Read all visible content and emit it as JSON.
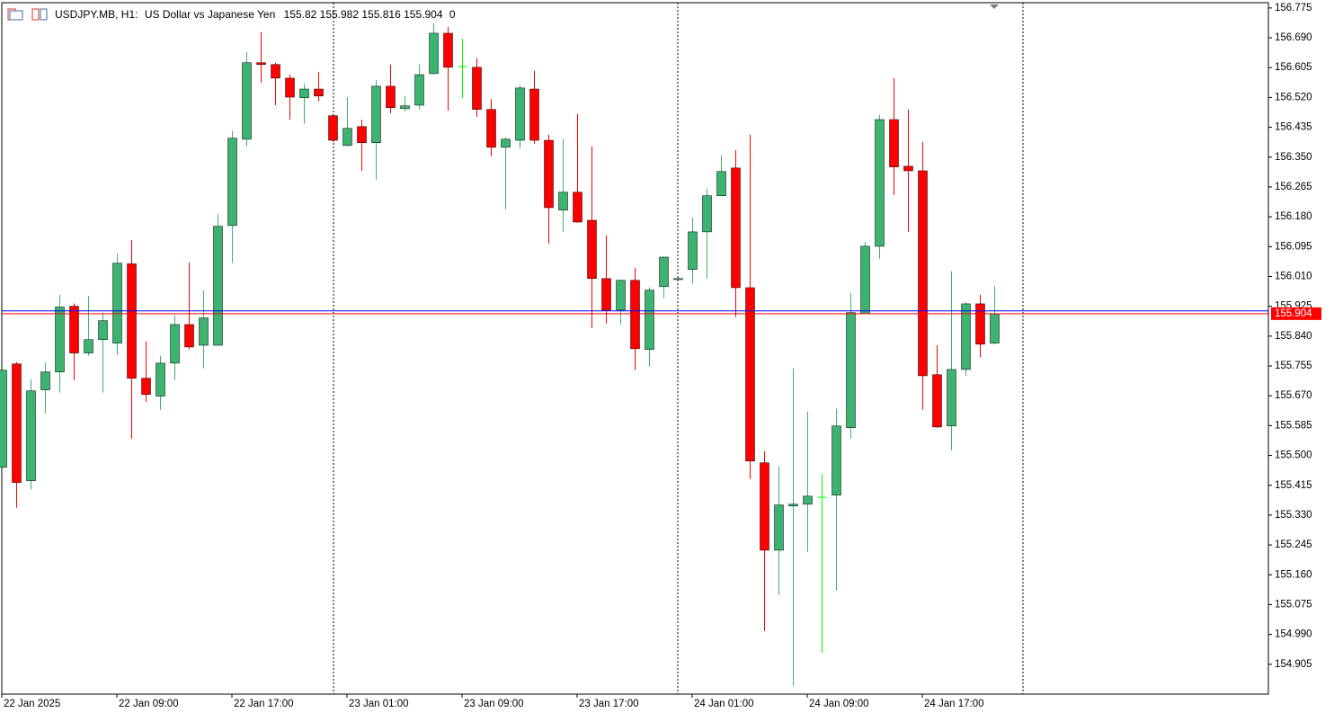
{
  "chart_data": {
    "type": "candlestick",
    "symbol": "USDJPY.MB, H1:",
    "description": "US Dollar vs Japanese Yen",
    "header_tail": "0",
    "categories": [
      "22 Jan 2025",
      null,
      null,
      null,
      null,
      null,
      null,
      null,
      "22 Jan 09:00",
      null,
      null,
      null,
      null,
      null,
      null,
      null,
      "22 Jan 17:00",
      null,
      null,
      null,
      null,
      null,
      null,
      null,
      "23 Jan 01:00",
      null,
      null,
      null,
      null,
      null,
      null,
      null,
      "23 Jan 09:00",
      null,
      null,
      null,
      null,
      null,
      null,
      null,
      "23 Jan 17:00",
      null,
      null,
      null,
      null,
      null,
      null,
      null,
      "24 Jan 01:00",
      null,
      null,
      null,
      null,
      null,
      null,
      null,
      "24 Jan 09:00",
      null,
      null,
      null,
      null,
      null,
      null,
      null,
      "24 Jan 17:00",
      null,
      null,
      null,
      null,
      null
    ],
    "open": [
      155.466,
      155.761,
      155.428,
      155.687,
      155.738,
      155.925,
      155.792,
      155.83,
      155.82,
      156.046,
      155.72,
      155.669,
      155.763,
      155.873,
      155.814,
      155.814,
      156.155,
      156.401,
      156.619,
      156.614,
      156.575,
      156.519,
      156.544,
      156.468,
      156.383,
      156.437,
      156.391,
      156.552,
      156.488,
      156.498,
      156.588,
      156.703,
      156.609,
      156.606,
      156.486,
      156.378,
      156.398,
      156.544,
      156.398,
      156.199,
      156.25,
      156.17,
      156.004,
      155.914,
      155.999,
      155.802,
      155.981,
      156.001,
      156.03,
      156.137,
      156.24,
      156.319,
      155.978,
      155.479,
      155.23,
      155.356,
      155.361,
      155.382,
      155.387,
      155.579,
      155.904,
      156.096,
      156.457,
      156.324,
      156.311,
      155.73,
      155.584,
      155.745,
      155.932,
      155.82
    ],
    "high": [
      155.761,
      155.766,
      155.717,
      155.764,
      155.958,
      155.933,
      155.955,
      155.907,
      156.076,
      156.114,
      155.825,
      155.784,
      155.899,
      156.05,
      155.971,
      156.188,
      156.424,
      156.649,
      156.706,
      156.619,
      156.585,
      156.56,
      156.593,
      156.473,
      156.521,
      156.457,
      156.57,
      156.614,
      156.524,
      156.614,
      156.731,
      156.721,
      156.688,
      156.632,
      156.516,
      156.406,
      156.555,
      156.596,
      156.414,
      156.401,
      156.473,
      156.381,
      156.127,
      156.001,
      156.035,
      155.979,
      156.067,
      156.006,
      156.178,
      156.26,
      156.355,
      156.37,
      156.414,
      155.512,
      155.469,
      155.748,
      155.625,
      155.448,
      155.633,
      155.963,
      156.109,
      156.47,
      156.575,
      156.486,
      156.393,
      155.814,
      156.025,
      155.937,
      155.958,
      155.982
    ],
    "low": [
      155.453,
      155.351,
      155.403,
      155.62,
      155.679,
      155.715,
      155.784,
      155.679,
      155.786,
      155.548,
      155.653,
      155.63,
      155.715,
      155.802,
      155.748,
      155.812,
      156.048,
      156.381,
      156.562,
      156.498,
      156.457,
      156.445,
      156.509,
      156.393,
      156.381,
      156.311,
      156.286,
      156.475,
      156.48,
      156.486,
      156.585,
      156.483,
      156.519,
      156.465,
      156.352,
      156.201,
      156.375,
      156.388,
      156.104,
      156.137,
      156.163,
      155.863,
      155.876,
      155.873,
      155.743,
      155.753,
      155.948,
      155.996,
      155.989,
      156.004,
      156.24,
      155.894,
      155.433,
      155.0,
      155.102,
      154.844,
      155.225,
      154.938,
      155.115,
      155.548,
      155.902,
      156.06,
      156.242,
      156.137,
      155.63,
      155.579,
      155.515,
      155.727,
      155.779,
      155.816
    ],
    "close": [
      155.743,
      155.423,
      155.684,
      155.738,
      155.923,
      155.792,
      155.83,
      155.884,
      156.048,
      155.72,
      155.674,
      155.763,
      155.873,
      155.809,
      155.892,
      156.153,
      156.404,
      156.619,
      156.614,
      156.575,
      156.521,
      156.544,
      156.524,
      156.398,
      156.432,
      156.391,
      156.552,
      156.491,
      156.496,
      156.585,
      156.703,
      156.606,
      156.609,
      156.486,
      156.378,
      156.401,
      156.547,
      156.398,
      156.206,
      156.25,
      156.165,
      156.004,
      155.914,
      155.999,
      155.804,
      155.971,
      156.065,
      156.004,
      156.137,
      156.24,
      156.309,
      155.978,
      155.484,
      155.23,
      155.359,
      155.361,
      155.384,
      155.382,
      155.584,
      155.907,
      156.096,
      156.457,
      156.322,
      156.311,
      155.727,
      155.581,
      155.745,
      155.932,
      155.817,
      155.904
    ],
    "up_color": "#3cb371",
    "down_color": "#ff0000",
    "doji_color": "#00ff00",
    "ask": 155.912,
    "ask_color": "#0000ff",
    "bid_color": "#ff0000",
    "ylim": [
      154.82,
      156.79
    ],
    "yticks": [
      156.775,
      {
        "value": 156.69,
        "label": "156.690"
      },
      156.605,
      {
        "value": 156.52,
        "label": "156.520"
      },
      156.435,
      {
        "value": 156.35,
        "label": "156.350"
      },
      156.265,
      {
        "value": 156.18,
        "label": "156.180"
      },
      156.095,
      {
        "value": 156.01,
        "label": "156.010"
      },
      155.925,
      {
        "value": 155.84,
        "label": "155.840"
      },
      155.755,
      {
        "value": 155.67,
        "label": "155.670"
      },
      155.585,
      {
        "value": 155.5,
        "label": "155.500"
      },
      155.415,
      {
        "value": 155.33,
        "label": "155.330"
      },
      155.245,
      {
        "value": 155.16,
        "label": "155.160"
      },
      155.075,
      {
        "value": 154.99,
        "label": "154.990"
      },
      154.905
    ]
  }
}
